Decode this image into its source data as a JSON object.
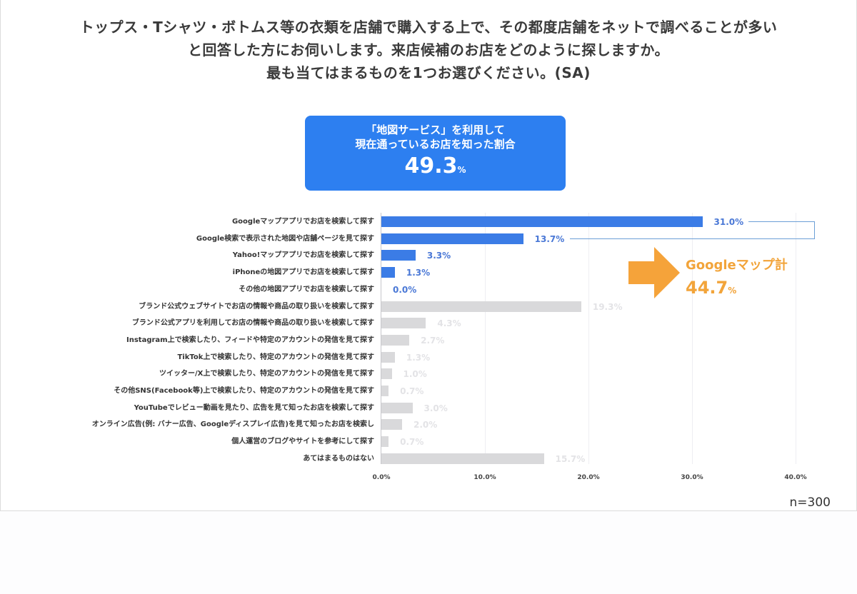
{
  "title": {
    "line1": "トップス・Tシャツ・ボトムス等の衣類を店舗で購入する上で、その都度店舗をネットで調べることが多い",
    "line2": "と回答した方にお伺いします。来店候補のお店をどのように探しますか。",
    "line3": "最も当てはまるものを1つお選びください。(SA)"
  },
  "callout": {
    "line1": "「地図サービス」を利用して",
    "line2": "現在通っているお店を知った割合",
    "value": "49.3",
    "unit": "%"
  },
  "annotation": {
    "label": "Googleマップ計",
    "value": "44.7",
    "unit": "%"
  },
  "sample_size": "n=300",
  "colors": {
    "highlight_bar": "#3b7ce6",
    "muted_bar": "#d9d9db",
    "callout_bg": "#2d7ff0",
    "annotation": "#f2a43a"
  },
  "chart_data": {
    "type": "bar",
    "orientation": "horizontal",
    "title": "来店候補のお店をどのように探しますか (SA)",
    "xlabel": "",
    "ylabel": "",
    "xlim": [
      0,
      40
    ],
    "x_ticks": [
      "0.0%",
      "10.0%",
      "20.0%",
      "30.0%",
      "40.0%"
    ],
    "grid": true,
    "categories": [
      "Googleマップアプリでお店を検索して探す",
      "Google検索で表示された地図や店舗ページを見て探す",
      "Yahoo!マップアプリでお店を検索して探す",
      "iPhoneの地図アプリでお店を検索して探す",
      "その他の地図アプリでお店を検索して探す",
      "ブランド公式ウェブサイトでお店の情報や商品の取り扱いを検索して探す",
      "ブランド公式アプリを利用してお店の情報や商品の取り扱いを検索して探す",
      "Instagram上で検索したり、フィードや特定のアカウントの発信を見て探す",
      "TikTok上で検索したり、特定のアカウントの発信を見て探す",
      "ツイッター/X上で検索したり、特定のアカウントの発信を見て探す",
      "その他SNS(Facebook等)上で検索したり、特定のアカウントの発信を見て探す",
      "YouTubeでレビュー動画を見たり、広告を見て知ったお店を検索して探す",
      "オンライン広告(例: バナー広告、Googleディスプレイ広告)を見て知ったお店を検索し",
      "個人運営のブログやサイトを参考にして探す",
      "あてはまるものはない"
    ],
    "values": [
      31.0,
      13.7,
      3.3,
      1.3,
      0.0,
      19.3,
      4.3,
      2.7,
      1.3,
      1.0,
      0.7,
      3.0,
      2.0,
      0.7,
      15.7
    ],
    "labels": [
      "31.0%",
      "13.7%",
      "3.3%",
      "1.3%",
      "0.0%",
      "19.3%",
      "4.3%",
      "2.7%",
      "1.3%",
      "1.0%",
      "0.7%",
      "3.0%",
      "2.0%",
      "0.7%",
      "15.7%"
    ],
    "highlighted": [
      true,
      true,
      true,
      true,
      true,
      false,
      false,
      false,
      false,
      false,
      false,
      false,
      false,
      false,
      false
    ],
    "annotations": [
      {
        "text": "「地図サービス」を利用して現在通っているお店を知った割合 49.3%"
      },
      {
        "text": "Googleマップ計 44.7%",
        "brackets": [
          0,
          1
        ]
      }
    ],
    "n": 300
  }
}
